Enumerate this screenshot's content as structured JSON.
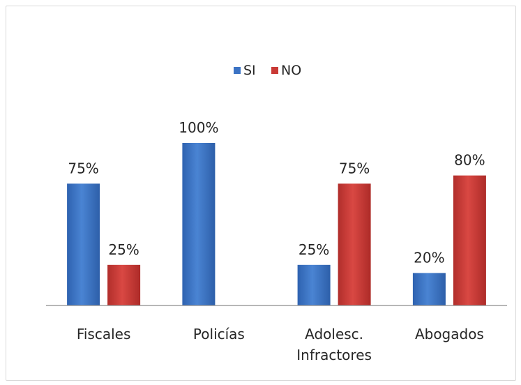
{
  "chart_data": {
    "type": "bar",
    "title": "",
    "xlabel": "",
    "ylabel": "",
    "ylim": [
      0,
      100
    ],
    "grid": false,
    "legend_position": "top-center",
    "categories": [
      [
        "Fiscales"
      ],
      [
        "Policías"
      ],
      [
        "Adolesc.",
        "Infractores"
      ],
      [
        "Abogados"
      ]
    ],
    "series": [
      {
        "name": "SI",
        "color": "#3b73c4",
        "values": [
          75,
          100,
          25,
          20
        ],
        "labels": [
          "75%",
          "100%",
          "25%",
          "20%"
        ]
      },
      {
        "name": "NO",
        "color": "#c93a36",
        "values": [
          25,
          0,
          75,
          80
        ],
        "labels": [
          "25%",
          "",
          "75%",
          "80%"
        ]
      }
    ]
  }
}
